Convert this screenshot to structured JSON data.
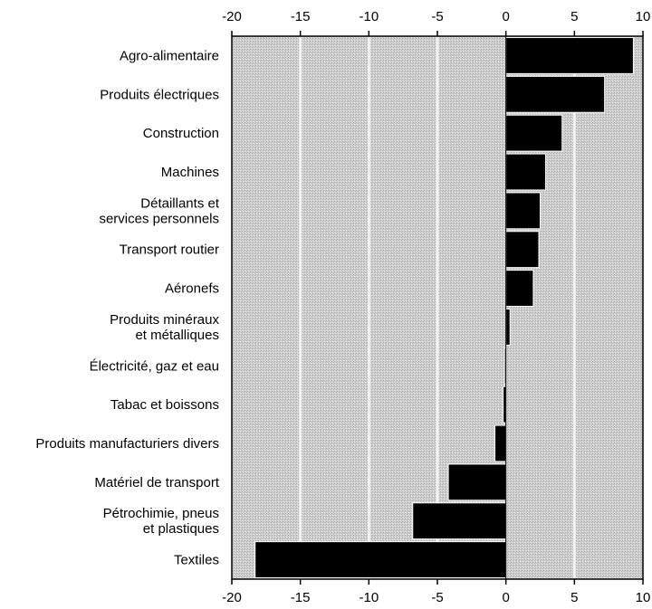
{
  "chart_data": {
    "type": "bar",
    "orientation": "horizontal",
    "categories": [
      [
        "Agro-alimentaire"
      ],
      [
        "Produits électriques"
      ],
      [
        "Construction"
      ],
      [
        "Machines"
      ],
      [
        "Détaillants et",
        "services personnels"
      ],
      [
        "Transport routier"
      ],
      [
        "Aéronefs"
      ],
      [
        "Produits minéraux",
        "et métalliques"
      ],
      [
        "Électricité, gaz et eau"
      ],
      [
        "Tabac et boissons"
      ],
      [
        "Produits manufacturiers divers"
      ],
      [
        "Matériel de transport"
      ],
      [
        "Pétrochimie, pneus",
        "et plastiques"
      ],
      [
        "Textiles"
      ]
    ],
    "values": [
      9.3,
      7.2,
      4.1,
      2.9,
      2.5,
      2.4,
      2.0,
      0.3,
      -0.1,
      -0.2,
      -0.8,
      -4.2,
      -6.8,
      -18.3
    ],
    "xlim": [
      -20,
      10
    ],
    "x_ticks": [
      "-20",
      "-15",
      "-10",
      "-5",
      "0",
      "5",
      "10"
    ],
    "x_tick_values": [
      -20,
      -15,
      -10,
      -5,
      0,
      5,
      10
    ],
    "tick_positions": "top-and-bottom",
    "grid": true,
    "colors": {
      "bar": "#000000",
      "plot_background": "#c8c8c8",
      "grid": "#f2f2f2",
      "axis": "#000000"
    }
  }
}
